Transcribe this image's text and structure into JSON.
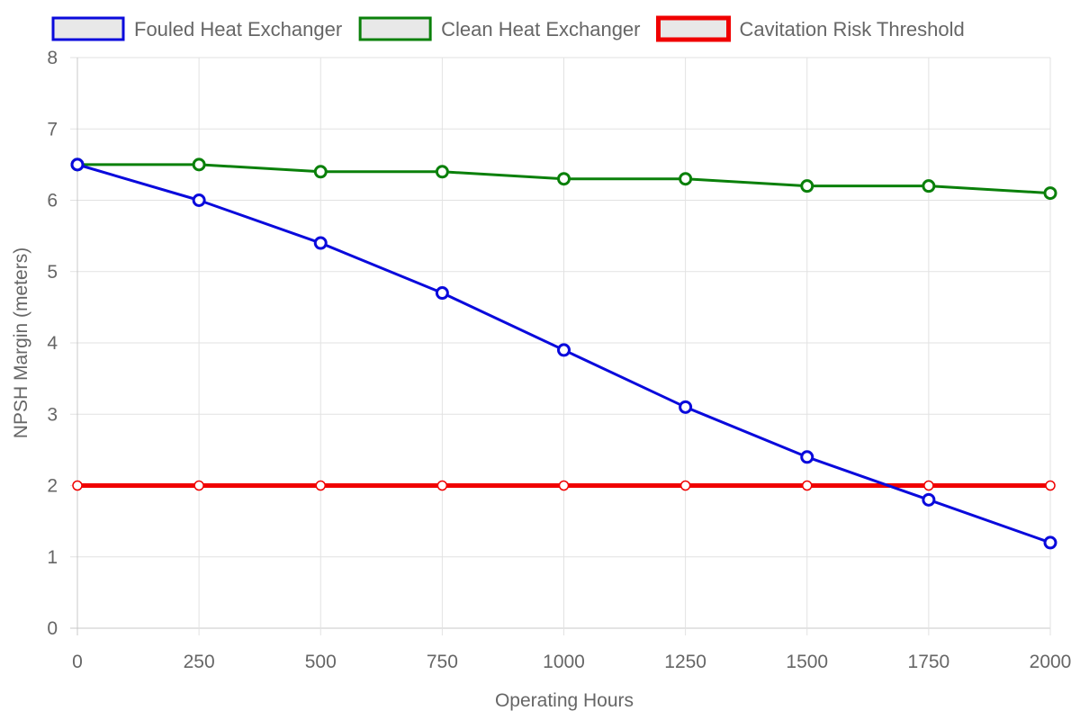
{
  "chart_data": {
    "type": "line",
    "title": "",
    "xlabel": "Operating Hours",
    "ylabel": "NPSH Margin (meters)",
    "x": [
      0,
      250,
      500,
      750,
      1000,
      1250,
      1500,
      1750,
      2000
    ],
    "xlim": [
      0,
      2000
    ],
    "ylim": [
      0,
      8
    ],
    "yticks": [
      0,
      1,
      2,
      3,
      4,
      5,
      6,
      7,
      8
    ],
    "grid": true,
    "legend_position": "top",
    "series": [
      {
        "name": "Fouled Heat Exchanger",
        "color": "#0a0adc",
        "values": [
          6.5,
          6.0,
          5.4,
          4.7,
          3.9,
          3.1,
          2.4,
          1.8,
          1.2
        ]
      },
      {
        "name": "Clean Heat Exchanger",
        "color": "#0a800a",
        "values": [
          6.5,
          6.5,
          6.4,
          6.4,
          6.3,
          6.3,
          6.2,
          6.2,
          6.1
        ]
      },
      {
        "name": "Cavitation Risk Threshold",
        "color": "#f00000",
        "values": [
          2,
          2,
          2,
          2,
          2,
          2,
          2,
          2,
          2
        ]
      }
    ]
  }
}
